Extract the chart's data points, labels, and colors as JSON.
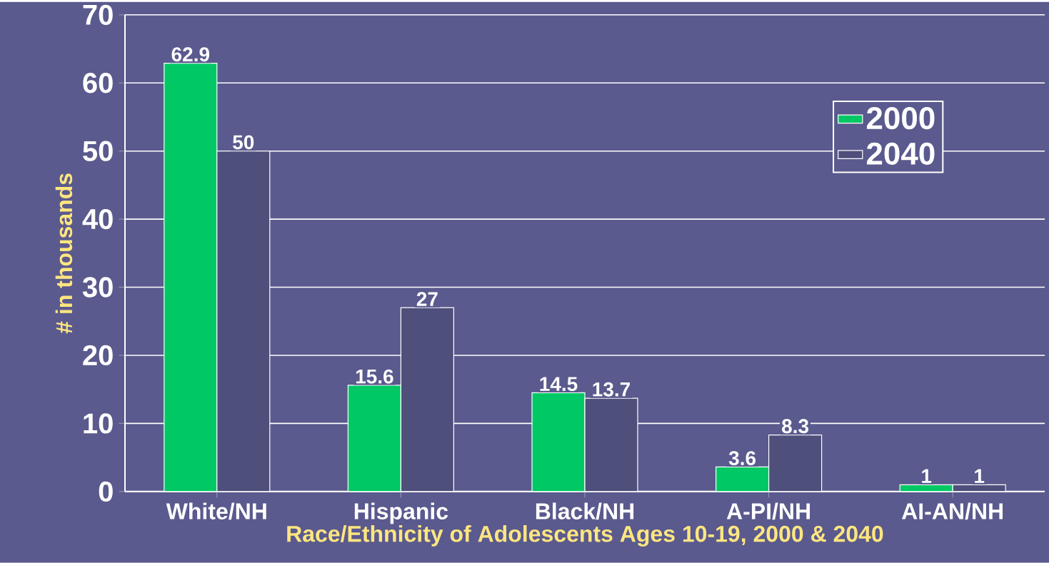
{
  "chart_data": {
    "type": "bar",
    "xlabel": "Race/Ethnicity of Adolescents Ages 10-19, 2000 & 2040",
    "ylabel": "# in thousands",
    "categories": [
      "White/NH",
      "Hispanic",
      "Black/NH",
      "A-PI/NH",
      "AI-AN/NH"
    ],
    "series": [
      {
        "name": "2000",
        "color": "#00c864",
        "values": [
          62.9,
          15.6,
          14.5,
          3.6,
          1
        ]
      },
      {
        "name": "2040",
        "color": "#4f4f7c",
        "values": [
          50,
          27,
          13.7,
          8.3,
          1
        ]
      }
    ],
    "ylim": [
      0,
      70
    ],
    "yticks": [
      0,
      10,
      20,
      30,
      40,
      50,
      60,
      70
    ],
    "grid": "y",
    "legend": "right",
    "data_labels": true
  }
}
